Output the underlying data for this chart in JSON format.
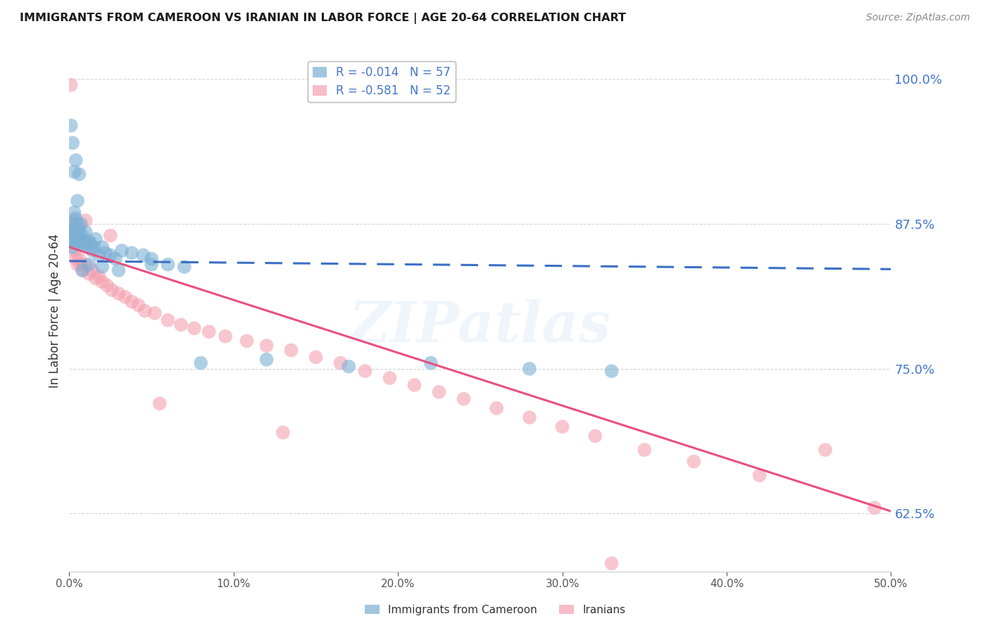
{
  "title": "IMMIGRANTS FROM CAMEROON VS IRANIAN IN LABOR FORCE | AGE 20-64 CORRELATION CHART",
  "source": "Source: ZipAtlas.com",
  "ylabel": "In Labor Force | Age 20-64",
  "xlim": [
    0.0,
    0.5
  ],
  "ylim": [
    0.575,
    1.025
  ],
  "yticks": [
    0.625,
    0.75,
    0.875,
    1.0
  ],
  "ytick_labels": [
    "62.5%",
    "75.0%",
    "87.5%",
    "100.0%"
  ],
  "xticks": [
    0.0,
    0.1,
    0.2,
    0.3,
    0.4,
    0.5
  ],
  "xtick_labels": [
    "0.0%",
    "10.0%",
    "20.0%",
    "30.0%",
    "40.0%",
    "50.0%"
  ],
  "blue_R": "-0.014",
  "blue_N": "57",
  "pink_R": "-0.581",
  "pink_N": "52",
  "blue_color": "#7BAFD4",
  "pink_color": "#F4A0B0",
  "trend_blue_color": "#3A6FC4",
  "trend_pink_color": "#E85080",
  "watermark": "ZIPatlas",
  "blue_x": [
    0.001,
    0.001,
    0.002,
    0.002,
    0.002,
    0.003,
    0.003,
    0.003,
    0.004,
    0.004,
    0.004,
    0.005,
    0.005,
    0.005,
    0.006,
    0.006,
    0.007,
    0.007,
    0.008,
    0.008,
    0.009,
    0.01,
    0.01,
    0.011,
    0.012,
    0.013,
    0.014,
    0.015,
    0.016,
    0.018,
    0.02,
    0.022,
    0.025,
    0.028,
    0.032,
    0.038,
    0.045,
    0.05,
    0.06,
    0.07,
    0.003,
    0.005,
    0.008,
    0.012,
    0.02,
    0.03,
    0.05,
    0.08,
    0.12,
    0.17,
    0.22,
    0.28,
    0.33,
    0.001,
    0.002,
    0.004,
    0.006
  ],
  "blue_y": [
    0.86,
    0.87,
    0.855,
    0.865,
    0.875,
    0.86,
    0.87,
    0.885,
    0.865,
    0.87,
    0.88,
    0.858,
    0.868,
    0.875,
    0.86,
    0.87,
    0.862,
    0.875,
    0.858,
    0.865,
    0.86,
    0.858,
    0.868,
    0.855,
    0.86,
    0.858,
    0.852,
    0.855,
    0.862,
    0.848,
    0.855,
    0.85,
    0.848,
    0.845,
    0.852,
    0.85,
    0.848,
    0.845,
    0.84,
    0.838,
    0.92,
    0.895,
    0.835,
    0.84,
    0.838,
    0.835,
    0.84,
    0.755,
    0.758,
    0.752,
    0.755,
    0.75,
    0.748,
    0.96,
    0.945,
    0.93,
    0.918
  ],
  "pink_x": [
    0.001,
    0.002,
    0.003,
    0.004,
    0.005,
    0.006,
    0.007,
    0.008,
    0.01,
    0.012,
    0.014,
    0.016,
    0.018,
    0.02,
    0.023,
    0.026,
    0.03,
    0.034,
    0.038,
    0.042,
    0.046,
    0.052,
    0.06,
    0.068,
    0.076,
    0.085,
    0.095,
    0.108,
    0.12,
    0.135,
    0.15,
    0.165,
    0.18,
    0.195,
    0.21,
    0.225,
    0.24,
    0.26,
    0.28,
    0.3,
    0.32,
    0.35,
    0.38,
    0.42,
    0.46,
    0.49,
    0.003,
    0.01,
    0.025,
    0.055,
    0.13,
    0.33
  ],
  "pink_y": [
    0.995,
    0.868,
    0.852,
    0.845,
    0.84,
    0.845,
    0.84,
    0.835,
    0.84,
    0.832,
    0.835,
    0.828,
    0.83,
    0.825,
    0.822,
    0.818,
    0.815,
    0.812,
    0.808,
    0.805,
    0.8,
    0.798,
    0.792,
    0.788,
    0.785,
    0.782,
    0.778,
    0.774,
    0.77,
    0.766,
    0.76,
    0.755,
    0.748,
    0.742,
    0.736,
    0.73,
    0.724,
    0.716,
    0.708,
    0.7,
    0.692,
    0.68,
    0.67,
    0.658,
    0.68,
    0.63,
    0.878,
    0.878,
    0.865,
    0.72,
    0.695,
    0.582
  ],
  "blue_trend_x": [
    0.0,
    0.5
  ],
  "blue_trend_y": [
    0.843,
    0.836
  ],
  "pink_trend_x": [
    0.0,
    0.5
  ],
  "pink_trend_y": [
    0.855,
    0.627
  ]
}
